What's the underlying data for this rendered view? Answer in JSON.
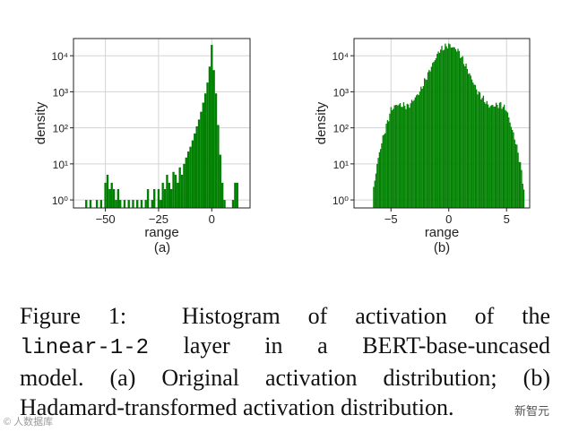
{
  "figure": {
    "caption": {
      "label": "Figure 1:",
      "line1_rest": "Histogram of activation of the",
      "code": "linear-1-2",
      "line2_rest": "layer in a BERT-base-uncased",
      "line3": "model. (a) Original activation distribution; (b)",
      "line4": "Hadamard-transformed activation distribution."
    },
    "watermarks": {
      "left": "© 人数据库",
      "right": "新智元"
    }
  },
  "chart_data": [
    {
      "type": "bar",
      "panel_label": "(a)",
      "xlabel": "range",
      "ylabel": "density",
      "yscale": "log",
      "xlim": [
        -65,
        18
      ],
      "ylim": [
        0.6,
        30000
      ],
      "xticks": [
        -50,
        -25,
        0
      ],
      "xtick_labels": [
        "−50",
        "−25",
        "0"
      ],
      "yticks": [
        1,
        10,
        100,
        1000,
        10000
      ],
      "ytick_labels": [
        "10⁰",
        "10¹",
        "10²",
        "10³",
        "10⁴"
      ],
      "grid": true,
      "color": "#008000",
      "bin_width": 1,
      "x": [
        -59,
        -57,
        -54,
        -52,
        -50,
        -49,
        -48,
        -47,
        -46,
        -45,
        -44,
        -43,
        -41,
        -39,
        -37,
        -35,
        -33,
        -31,
        -30,
        -28,
        -27,
        -25,
        -24,
        -23,
        -22,
        -21,
        -20,
        -19,
        -18,
        -17,
        -16,
        -15,
        -14,
        -13,
        -12,
        -11,
        -10,
        -9,
        -8,
        -7,
        -6,
        -5,
        -4,
        -3,
        -2,
        -1,
        0,
        1,
        2,
        3,
        4,
        5,
        6,
        10,
        11,
        12
      ],
      "values": [
        1,
        1,
        1,
        1,
        3,
        5,
        2,
        3,
        2,
        1,
        2,
        1,
        1,
        1,
        1,
        1,
        1,
        1,
        2,
        1,
        2,
        2,
        1,
        3,
        2,
        5,
        3,
        2,
        6,
        5,
        3,
        8,
        5,
        10,
        15,
        22,
        30,
        45,
        70,
        110,
        170,
        280,
        500,
        900,
        1800,
        5000,
        20000,
        4000,
        900,
        120,
        18,
        3,
        1,
        1,
        3,
        3
      ]
    },
    {
      "type": "bar",
      "panel_label": "(b)",
      "xlabel": "range",
      "ylabel": "density",
      "yscale": "log",
      "xlim": [
        -8.2,
        7
      ],
      "ylim": [
        0.6,
        30000
      ],
      "xticks": [
        -5,
        0,
        5
      ],
      "xtick_labels": [
        "−5",
        "0",
        "5"
      ],
      "yticks": [
        1,
        10,
        100,
        1000,
        10000
      ],
      "ytick_labels": [
        "10⁰",
        "10¹",
        "10²",
        "10³",
        "10⁴"
      ],
      "grid": true,
      "color": "#008000",
      "bin_width": 0.1,
      "x_range": [
        -6.5,
        6.5
      ],
      "log10_density_profile": [
        [
          -6.5,
          0.3
        ],
        [
          -6.2,
          1.0
        ],
        [
          -5.8,
          1.6
        ],
        [
          -5.0,
          2.5
        ],
        [
          -4.5,
          2.65
        ],
        [
          -3.5,
          2.6
        ],
        [
          -2.5,
          3.0
        ],
        [
          -1.5,
          3.7
        ],
        [
          -0.8,
          4.15
        ],
        [
          0,
          4.3
        ],
        [
          0.8,
          4.15
        ],
        [
          1.5,
          3.7
        ],
        [
          2.5,
          3.0
        ],
        [
          3.5,
          2.6
        ],
        [
          4.5,
          2.65
        ],
        [
          5.0,
          2.5
        ],
        [
          5.8,
          1.6
        ],
        [
          6.2,
          1.0
        ],
        [
          6.5,
          0.3
        ]
      ]
    }
  ]
}
